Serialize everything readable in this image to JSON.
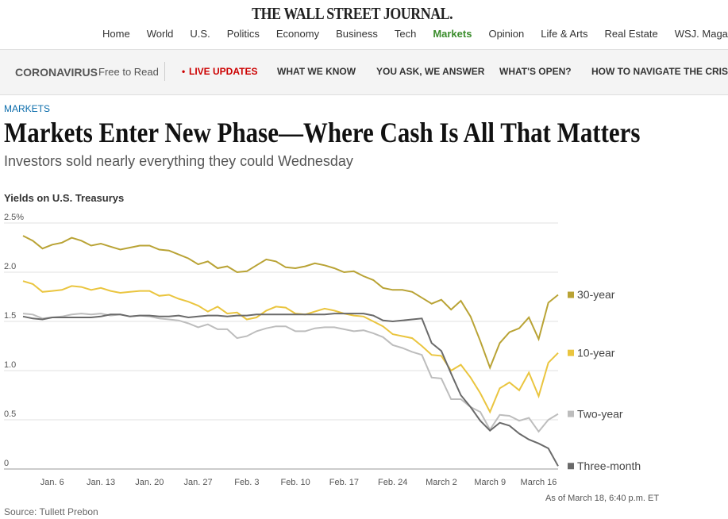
{
  "masthead": "THE WALL STREET JOURNAL.",
  "nav": [
    "Home",
    "World",
    "U.S.",
    "Politics",
    "Economy",
    "Business",
    "Tech",
    "Markets",
    "Opinion",
    "Life & Arts",
    "Real Estate",
    "WSJ. Magazine"
  ],
  "subnav": {
    "label": "CORONAVIRUS",
    "tag": "Free to Read",
    "live": "LIVE UPDATES",
    "links": [
      "WHAT WE KNOW",
      "YOU ASK, WE ANSWER",
      "WHAT'S OPEN?",
      "HOW TO NAVIGATE THE CRISIS"
    ]
  },
  "article": {
    "section": "MARKETS",
    "headline": "Markets Enter New Phase—Where Cash Is All That Matters",
    "dek": "Investors sold nearly everything they could Wednesday"
  },
  "chart_data": {
    "type": "line",
    "title": "Yields on U.S. Treasurys",
    "source": "Source: Tullett Prebon",
    "note": "As of March 18, 6:40 p.m. ET",
    "categories": [
      null,
      null,
      null,
      "Jan. 6",
      null,
      null,
      null,
      null,
      "Jan. 13",
      null,
      null,
      null,
      null,
      "Jan. 20",
      null,
      null,
      null,
      null,
      "Jan. 27",
      null,
      null,
      null,
      null,
      "Feb. 3",
      null,
      null,
      null,
      null,
      "Feb. 10",
      null,
      null,
      null,
      null,
      "Feb. 17",
      null,
      null,
      null,
      null,
      "Feb. 24",
      null,
      null,
      null,
      null,
      "March 2",
      null,
      null,
      null,
      null,
      "March 9",
      null,
      null,
      null,
      null,
      "March 16",
      null,
      null
    ],
    "ylim": [
      0,
      2.5
    ],
    "yticks": [
      0,
      0.5,
      {
        "value": 1,
        "label": "1.0"
      },
      1.5,
      {
        "value": 2,
        "label": "2.0"
      },
      {
        "value": 2.5,
        "label": "2.5%"
      }
    ],
    "grid": true,
    "series": [
      {
        "name": "30-year",
        "color": "#b9a335",
        "values": [
          2.37,
          2.32,
          2.24,
          2.28,
          2.3,
          2.35,
          2.32,
          2.27,
          2.29,
          2.26,
          2.23,
          2.25,
          2.27,
          2.27,
          2.23,
          2.22,
          2.18,
          2.14,
          2.08,
          2.11,
          2.04,
          2.06,
          2.0,
          2.01,
          2.07,
          2.13,
          2.11,
          2.05,
          2.04,
          2.06,
          2.09,
          2.07,
          2.04,
          2.0,
          2.01,
          1.96,
          1.92,
          1.84,
          1.82,
          1.82,
          1.8,
          1.74,
          1.68,
          1.72,
          1.62,
          1.71,
          1.55,
          1.3,
          1.03,
          1.28,
          1.39,
          1.43,
          1.54,
          1.32,
          1.69,
          1.77
        ]
      },
      {
        "name": "10-year",
        "color": "#eac53f",
        "values": [
          1.91,
          1.88,
          1.8,
          1.81,
          1.82,
          1.86,
          1.85,
          1.82,
          1.84,
          1.81,
          1.79,
          1.8,
          1.81,
          1.81,
          1.76,
          1.77,
          1.73,
          1.7,
          1.66,
          1.6,
          1.65,
          1.58,
          1.59,
          1.52,
          1.54,
          1.61,
          1.65,
          1.64,
          1.58,
          1.57,
          1.6,
          1.63,
          1.61,
          1.58,
          1.56,
          1.55,
          1.5,
          1.45,
          1.37,
          1.35,
          1.33,
          1.25,
          1.16,
          1.15,
          1.0,
          1.06,
          0.93,
          0.77,
          0.58,
          0.82,
          0.88,
          0.8,
          0.98,
          0.74,
          1.08,
          1.18
        ]
      },
      {
        "name": "Two-year",
        "color": "#bdbdbd",
        "values": [
          1.58,
          1.57,
          1.53,
          1.54,
          1.55,
          1.57,
          1.58,
          1.57,
          1.58,
          1.56,
          1.57,
          1.55,
          1.56,
          1.55,
          1.53,
          1.52,
          1.51,
          1.48,
          1.44,
          1.47,
          1.42,
          1.42,
          1.33,
          1.35,
          1.4,
          1.43,
          1.45,
          1.45,
          1.4,
          1.4,
          1.43,
          1.44,
          1.44,
          1.42,
          1.4,
          1.41,
          1.38,
          1.34,
          1.26,
          1.23,
          1.19,
          1.16,
          0.93,
          0.92,
          0.71,
          0.71,
          0.63,
          0.58,
          0.4,
          0.55,
          0.54,
          0.49,
          0.52,
          0.38,
          0.5,
          0.56
        ]
      },
      {
        "name": "Three-month",
        "color": "#6a6a6a",
        "values": [
          1.55,
          1.53,
          1.52,
          1.54,
          1.54,
          1.54,
          1.54,
          1.54,
          1.55,
          1.57,
          1.57,
          1.55,
          1.56,
          1.56,
          1.55,
          1.55,
          1.56,
          1.54,
          1.55,
          1.56,
          1.56,
          1.55,
          1.56,
          1.56,
          1.57,
          1.57,
          1.57,
          1.57,
          1.57,
          1.57,
          1.57,
          1.57,
          1.58,
          1.58,
          1.58,
          1.58,
          1.56,
          1.51,
          1.5,
          1.51,
          1.52,
          1.53,
          1.28,
          1.2,
          0.97,
          0.75,
          0.63,
          0.49,
          0.39,
          0.47,
          0.44,
          0.36,
          0.3,
          0.26,
          0.21,
          0.03
        ]
      }
    ]
  }
}
